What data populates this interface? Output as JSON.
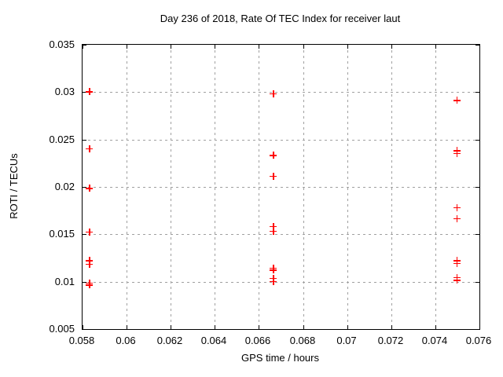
{
  "chart_data": {
    "type": "scatter",
    "title": "Day 236 of 2018, Rate Of TEC Index for receiver laut",
    "xlabel": "GPS time / hours",
    "ylabel": "ROTI / TECUs",
    "xlim": [
      0.058,
      0.076
    ],
    "ylim": [
      0.005,
      0.035
    ],
    "grid": true,
    "legend_position": "none",
    "xticks": [
      {
        "v": 0.058,
        "label": "0.058"
      },
      {
        "v": 0.06,
        "label": "0.06"
      },
      {
        "v": 0.062,
        "label": "0.062"
      },
      {
        "v": 0.064,
        "label": "0.064"
      },
      {
        "v": 0.066,
        "label": "0.066"
      },
      {
        "v": 0.068,
        "label": "0.068"
      },
      {
        "v": 0.07,
        "label": "0.07"
      },
      {
        "v": 0.072,
        "label": "0.072"
      },
      {
        "v": 0.074,
        "label": "0.074"
      },
      {
        "v": 0.076,
        "label": "0.076"
      }
    ],
    "yticks": [
      {
        "v": 0.005,
        "label": "0.005"
      },
      {
        "v": 0.01,
        "label": "0.01"
      },
      {
        "v": 0.015,
        "label": "0.015"
      },
      {
        "v": 0.02,
        "label": "0.02"
      },
      {
        "v": 0.025,
        "label": "0.025"
      },
      {
        "v": 0.03,
        "label": "0.03"
      },
      {
        "v": 0.035,
        "label": "0.035"
      }
    ],
    "series": [
      {
        "name": "ROTI",
        "marker": "plus",
        "color": "#ff0000",
        "points": [
          [
            0.058333,
            0.03
          ],
          [
            0.058333,
            0.024
          ],
          [
            0.058333,
            0.0198
          ],
          [
            0.058333,
            0.0152
          ],
          [
            0.058333,
            0.0122
          ],
          [
            0.058333,
            0.0118
          ],
          [
            0.058333,
            0.0098
          ],
          [
            0.058333,
            0.0096
          ],
          [
            0.066667,
            0.0298
          ],
          [
            0.066667,
            0.0233
          ],
          [
            0.066667,
            0.0211
          ],
          [
            0.066667,
            0.0158
          ],
          [
            0.066667,
            0.0153
          ],
          [
            0.066667,
            0.0114
          ],
          [
            0.066667,
            0.0112
          ],
          [
            0.066667,
            0.0103
          ],
          [
            0.066667,
            0.01
          ],
          [
            0.075,
            0.0291
          ],
          [
            0.075,
            0.0238
          ],
          [
            0.075,
            0.0235
          ],
          [
            0.075,
            0.0178
          ],
          [
            0.075,
            0.0166
          ],
          [
            0.075,
            0.0122
          ],
          [
            0.075,
            0.0119
          ],
          [
            0.075,
            0.0104
          ],
          [
            0.075,
            0.0101
          ]
        ]
      }
    ]
  },
  "colors": {
    "background": "#ffffff",
    "axis": "#000000",
    "grid": "#a0a0a0",
    "marker": "#ff0000",
    "text": "#000000"
  }
}
